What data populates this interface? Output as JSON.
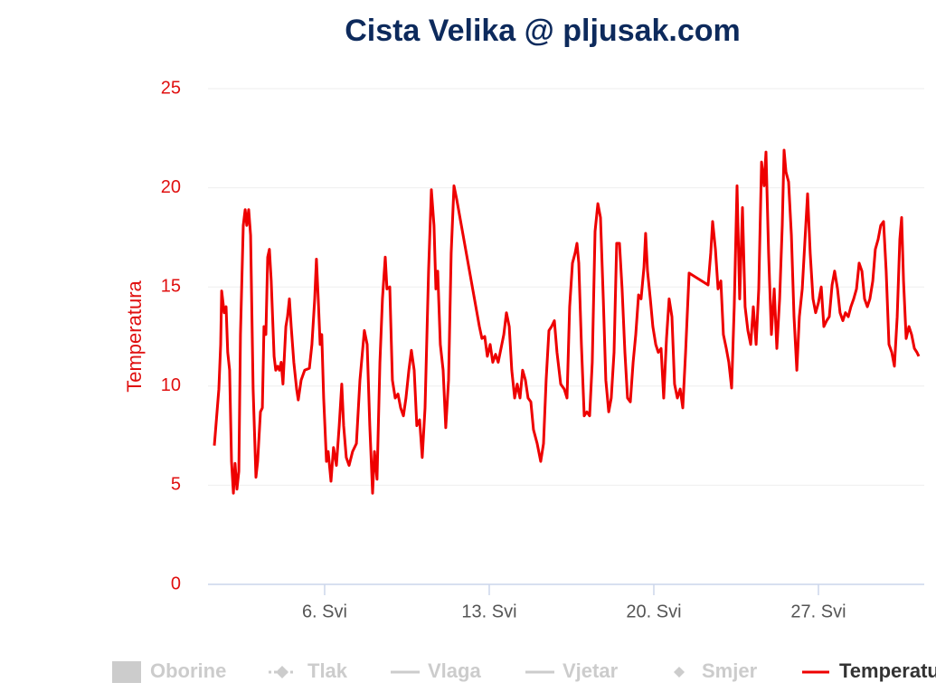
{
  "chart_data": {
    "type": "line",
    "title": "Cista Velika @ pljusak.com",
    "y_label": "Temperatura",
    "xlim": [
      1.04,
      31.5
    ],
    "xticks": [
      {
        "value": 6,
        "label": "6. Svi"
      },
      {
        "value": 13,
        "label": "13. Svi"
      },
      {
        "value": 20,
        "label": "20. Svi"
      },
      {
        "value": 27,
        "label": "27. Svi"
      }
    ],
    "ylim": [
      0,
      25
    ],
    "yticks": [
      0,
      5,
      10,
      15,
      20,
      25
    ],
    "grid": true,
    "legend_items": [
      {
        "name": "Oborine",
        "symbol": "rect"
      },
      {
        "name": "Tlak",
        "symbol": "dashed-diamond"
      },
      {
        "name": "Vlaga",
        "symbol": "line"
      },
      {
        "name": "Vjetar",
        "symbol": "line"
      },
      {
        "name": "Smjer",
        "symbol": "diamond"
      }
    ],
    "series": [
      {
        "name": "Temperatura",
        "color": "#ee0000",
        "x": [
          1.31,
          1.5,
          1.58,
          1.62,
          1.73,
          1.81,
          1.88,
          1.96,
          2.04,
          2.12,
          2.19,
          2.27,
          2.35,
          2.42,
          2.54,
          2.62,
          2.69,
          2.77,
          2.85,
          2.96,
          3.08,
          3.15,
          3.27,
          3.35,
          3.42,
          3.5,
          3.58,
          3.65,
          3.73,
          3.85,
          3.92,
          4.0,
          4.08,
          4.15,
          4.23,
          4.35,
          4.42,
          4.5,
          4.58,
          4.69,
          4.81,
          4.88,
          5.0,
          5.15,
          5.35,
          5.46,
          5.58,
          5.65,
          5.73,
          5.81,
          5.88,
          5.96,
          6.08,
          6.15,
          6.27,
          6.38,
          6.5,
          6.62,
          6.73,
          6.81,
          6.92,
          7.04,
          7.19,
          7.35,
          7.5,
          7.69,
          7.81,
          7.92,
          8.04,
          8.12,
          8.23,
          8.35,
          8.46,
          8.58,
          8.65,
          8.77,
          8.88,
          9.0,
          9.12,
          9.23,
          9.35,
          9.46,
          9.58,
          9.69,
          9.81,
          9.92,
          10.04,
          10.15,
          10.27,
          10.42,
          10.54,
          10.65,
          10.73,
          10.81,
          10.92,
          11.04,
          11.15,
          11.27,
          11.38,
          11.5,
          11.62,
          12.58,
          12.69,
          12.81,
          12.92,
          13.04,
          13.15,
          13.27,
          13.38,
          13.5,
          13.62,
          13.73,
          13.85,
          13.96,
          14.08,
          14.19,
          14.31,
          14.42,
          14.54,
          14.65,
          14.77,
          14.88,
          15.04,
          15.19,
          15.31,
          15.42,
          15.54,
          15.65,
          15.77,
          15.88,
          16.04,
          16.19,
          16.31,
          16.42,
          16.54,
          16.65,
          16.73,
          16.81,
          16.92,
          17.04,
          17.15,
          17.27,
          17.38,
          17.5,
          17.62,
          17.73,
          17.85,
          17.96,
          18.08,
          18.19,
          18.31,
          18.42,
          18.54,
          18.65,
          18.77,
          18.88,
          19.0,
          19.12,
          19.23,
          19.35,
          19.46,
          19.58,
          19.65,
          19.73,
          19.85,
          19.96,
          20.08,
          20.19,
          20.31,
          20.42,
          20.54,
          20.65,
          20.77,
          20.88,
          21.0,
          21.12,
          21.23,
          21.35,
          21.5,
          22.31,
          22.42,
          22.5,
          22.62,
          22.73,
          22.85,
          22.96,
          23.08,
          23.19,
          23.31,
          23.42,
          23.54,
          23.65,
          23.77,
          23.88,
          24.0,
          24.12,
          24.23,
          24.35,
          24.46,
          24.58,
          24.69,
          24.77,
          24.88,
          25.0,
          25.12,
          25.23,
          25.35,
          25.46,
          25.54,
          25.62,
          25.73,
          25.85,
          25.96,
          26.08,
          26.19,
          26.31,
          26.42,
          26.54,
          26.65,
          26.77,
          26.88,
          27.0,
          27.12,
          27.23,
          27.35,
          27.46,
          27.58,
          27.69,
          27.81,
          27.92,
          28.04,
          28.15,
          28.27,
          28.38,
          28.5,
          28.62,
          28.73,
          28.85,
          28.96,
          29.08,
          29.19,
          29.31,
          29.42,
          29.54,
          29.65,
          29.77,
          29.88,
          30.0,
          30.12,
          30.23,
          30.35,
          30.46,
          30.54,
          30.62,
          30.73,
          30.85,
          30.96,
          31.08,
          31.19,
          31.27
        ],
        "values": [
          7.0,
          9.85,
          12.1,
          14.8,
          13.7,
          14.0,
          11.7,
          10.8,
          6.2,
          4.6,
          6.1,
          4.8,
          5.7,
          12.6,
          18.1,
          18.9,
          18.1,
          18.9,
          17.6,
          9.85,
          5.4,
          6.2,
          8.7,
          8.9,
          13.0,
          12.6,
          16.5,
          16.9,
          15.3,
          11.5,
          10.8,
          11.0,
          10.8,
          11.2,
          10.1,
          13.0,
          13.5,
          14.4,
          13.0,
          11.2,
          9.85,
          9.3,
          10.3,
          10.8,
          10.9,
          12.1,
          14.4,
          16.4,
          14.4,
          12.1,
          12.6,
          9.4,
          6.2,
          6.7,
          5.2,
          6.9,
          6.0,
          8.0,
          10.1,
          8.0,
          6.4,
          6.0,
          6.7,
          7.1,
          10.3,
          12.8,
          12.1,
          8.0,
          4.6,
          6.7,
          5.3,
          11.2,
          14.4,
          16.5,
          14.9,
          15.0,
          10.3,
          9.4,
          9.6,
          8.9,
          8.5,
          9.4,
          10.8,
          11.8,
          10.8,
          8.0,
          8.3,
          6.4,
          8.9,
          15.8,
          19.9,
          18.1,
          14.9,
          15.8,
          12.1,
          10.8,
          7.9,
          10.3,
          16.7,
          20.1,
          19.4,
          13.0,
          12.4,
          12.5,
          11.5,
          12.1,
          11.2,
          11.6,
          11.2,
          11.9,
          12.6,
          13.7,
          13.0,
          10.8,
          9.4,
          10.1,
          9.4,
          10.8,
          10.3,
          9.4,
          9.2,
          7.8,
          7.1,
          6.2,
          7.1,
          10.3,
          12.8,
          13.0,
          13.3,
          11.7,
          10.1,
          9.85,
          9.4,
          14.0,
          16.2,
          16.7,
          17.2,
          16.2,
          12.1,
          8.5,
          8.7,
          8.5,
          11.2,
          17.8,
          19.2,
          18.5,
          14.4,
          10.3,
          8.7,
          9.4,
          11.7,
          17.2,
          17.2,
          14.9,
          11.7,
          9.4,
          9.2,
          11.2,
          12.6,
          14.6,
          14.4,
          16.0,
          17.7,
          15.8,
          14.4,
          13.0,
          12.1,
          11.7,
          11.9,
          9.4,
          12.4,
          14.4,
          13.5,
          10.1,
          9.4,
          9.85,
          8.9,
          11.7,
          15.7,
          15.1,
          16.7,
          18.3,
          16.9,
          14.9,
          15.3,
          12.6,
          11.9,
          11.2,
          9.9,
          14.0,
          20.1,
          14.4,
          19.0,
          14.0,
          12.8,
          12.1,
          14.0,
          12.1,
          14.9,
          21.3,
          20.1,
          21.8,
          16.7,
          12.6,
          14.9,
          11.9,
          14.4,
          18.1,
          21.9,
          20.8,
          20.3,
          17.6,
          13.5,
          10.8,
          13.5,
          14.9,
          17.2,
          19.7,
          16.7,
          14.4,
          13.7,
          14.2,
          15.0,
          13.0,
          13.3,
          13.5,
          15.1,
          15.8,
          14.9,
          13.7,
          13.3,
          13.7,
          13.5,
          14.0,
          14.4,
          14.9,
          16.2,
          15.8,
          14.4,
          14.0,
          14.4,
          15.3,
          16.9,
          17.4,
          18.1,
          18.3,
          15.8,
          12.1,
          11.7,
          11.0,
          13.5,
          17.4,
          18.5,
          15.3,
          12.4,
          13.0,
          12.6,
          11.9,
          11.7,
          11.5
        ]
      }
    ]
  }
}
